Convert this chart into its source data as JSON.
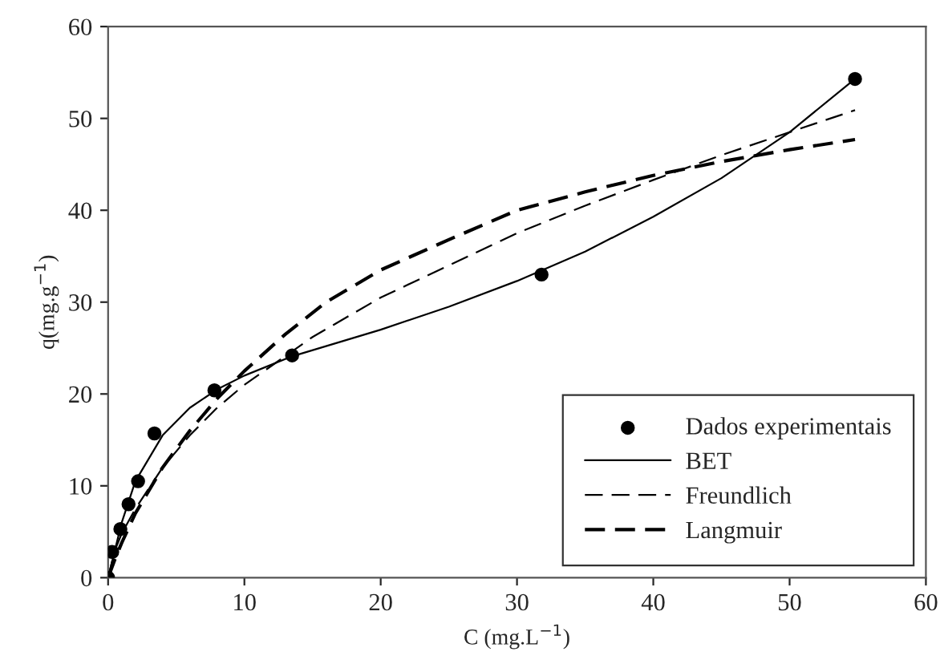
{
  "chart_data": {
    "type": "scatter",
    "xlabel": "C (mg.L$^{−1}$)",
    "ylabel": "q(mg.g$^{−1}$)",
    "xlim": [
      0,
      60
    ],
    "ylim": [
      0,
      60
    ],
    "xticks": [
      0,
      10,
      20,
      30,
      40,
      50,
      60
    ],
    "yticks": [
      0,
      10,
      20,
      30,
      40,
      50,
      60
    ],
    "grid": false,
    "legend": "bottom right",
    "series": [
      {
        "name": "Dados experimentais",
        "marker": "circle",
        "color": "#000000",
        "x": [
          0,
          0.3,
          0.9,
          1.5,
          2.2,
          3.4,
          7.8,
          13.5,
          31.8,
          54.8
        ],
        "values": [
          0,
          2.8,
          5.3,
          8.0,
          10.5,
          15.7,
          20.4,
          24.2,
          33.0,
          54.3
        ]
      },
      {
        "name": "BET",
        "type": "line",
        "line_style": "solid",
        "color": "#000000",
        "x": [
          0,
          1,
          2,
          4,
          6,
          8,
          10,
          13.5,
          20,
          25,
          30,
          35,
          40,
          45,
          50,
          54.8
        ],
        "values": [
          0,
          6,
          10.5,
          15.5,
          18.5,
          20.5,
          22,
          24.1,
          27,
          29.5,
          32.3,
          35.5,
          39.3,
          43.5,
          48.5,
          54.3
        ]
      },
      {
        "name": "Freundlich",
        "type": "line",
        "line_style": "dashed",
        "color": "#000000",
        "x": [
          0,
          0.5,
          1,
          2,
          4,
          6,
          8,
          10,
          15,
          20,
          25,
          30,
          35,
          40,
          45,
          50,
          54.8
        ],
        "values": [
          0,
          3,
          4.8,
          7.5,
          12,
          15.5,
          18.5,
          21,
          26.2,
          30.5,
          34,
          37.5,
          40.5,
          43.3,
          46,
          48.5,
          50.9
        ]
      },
      {
        "name": "Langmuir",
        "type": "line",
        "line_style": "dashed",
        "color": "#000000",
        "x": [
          0,
          0.5,
          1,
          2,
          4,
          6,
          8,
          10,
          13,
          16,
          20,
          25,
          30,
          35,
          40,
          45,
          50,
          54.8
        ],
        "values": [
          0,
          2,
          3.8,
          7,
          12,
          16,
          19.5,
          22.5,
          26.5,
          30,
          33.5,
          36.8,
          40,
          42,
          43.8,
          45.3,
          46.6,
          47.7
        ]
      }
    ]
  }
}
